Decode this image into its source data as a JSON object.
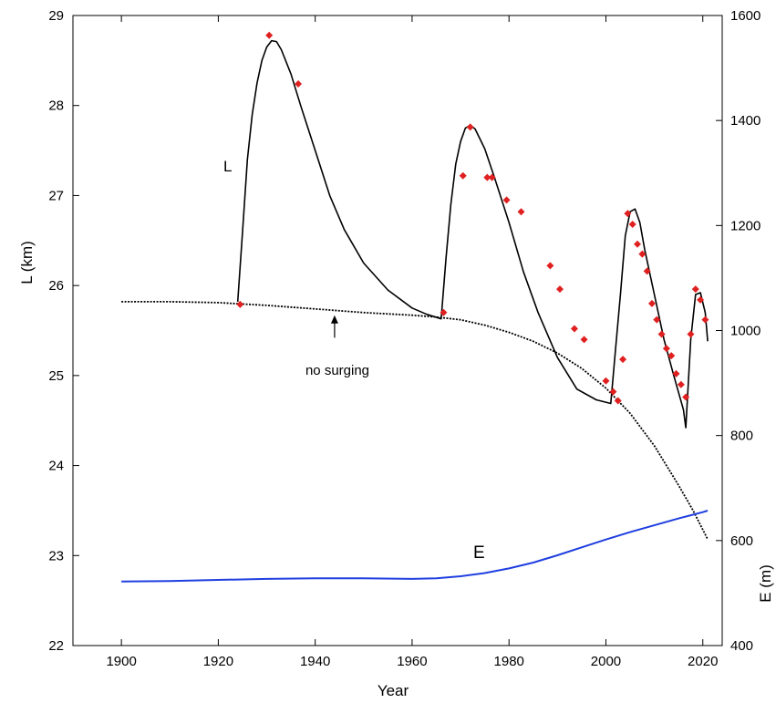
{
  "chart_data": {
    "type": "line",
    "xlabel": "Year",
    "ylabel_left": "L (km)",
    "ylabel_right": "E (m)",
    "xlim": [
      1890,
      2024
    ],
    "ylim_left": [
      22,
      29
    ],
    "ylim_right": [
      400,
      1600
    ],
    "x_ticks": [
      "1900",
      "1920",
      "1940",
      "1960",
      "1980",
      "2000",
      "2020"
    ],
    "y_left_ticks": [
      "22",
      "23",
      "24",
      "25",
      "26",
      "27",
      "28",
      "29"
    ],
    "y_right_ticks": [
      "400",
      "600",
      "800",
      "1000",
      "1200",
      "1400",
      "1600"
    ],
    "grid": false,
    "colors": {
      "L": "#000000",
      "no_surging": "#000000",
      "E": "#1f3fe0",
      "observations": "#e02020"
    },
    "series": [
      {
        "name": "L",
        "axis": "left",
        "style": "solid",
        "x": [
          1924,
          1925,
          1926,
          1927,
          1928,
          1929,
          1930,
          1931,
          1932,
          1933,
          1935,
          1937,
          1940,
          1943,
          1946,
          1950,
          1955,
          1960,
          1963,
          1966,
          1967,
          1968,
          1969,
          1970,
          1971,
          1972,
          1973,
          1975,
          1977,
          1980,
          1983,
          1986,
          1990,
          1994,
          1998,
          2001,
          2002,
          2003,
          2004,
          2005,
          2006,
          2007,
          2008,
          2010,
          2012,
          2014,
          2016,
          2016.5,
          2017.5,
          2018.5,
          2019.5,
          2020.5,
          2021
        ],
        "y": [
          25.82,
          26.6,
          27.4,
          27.9,
          28.25,
          28.5,
          28.65,
          28.72,
          28.71,
          28.62,
          28.35,
          28.0,
          27.5,
          27.0,
          26.62,
          26.25,
          25.95,
          25.75,
          25.68,
          25.63,
          26.3,
          26.9,
          27.35,
          27.6,
          27.75,
          27.78,
          27.74,
          27.52,
          27.2,
          26.7,
          26.15,
          25.7,
          25.2,
          24.85,
          24.73,
          24.69,
          25.3,
          25.9,
          26.55,
          26.82,
          26.85,
          26.7,
          26.4,
          25.9,
          25.4,
          25.0,
          24.62,
          24.42,
          25.4,
          25.9,
          25.92,
          25.7,
          25.38
        ]
      },
      {
        "name": "no surging",
        "axis": "left",
        "style": "dotted",
        "x": [
          1900,
          1910,
          1920,
          1930,
          1940,
          1950,
          1960,
          1965,
          1970,
          1975,
          1980,
          1985,
          1990,
          1995,
          2000,
          2005,
          2010,
          2015,
          2018,
          2021
        ],
        "y": [
          25.82,
          25.82,
          25.81,
          25.78,
          25.74,
          25.7,
          25.67,
          25.65,
          25.62,
          25.56,
          25.48,
          25.38,
          25.25,
          25.08,
          24.86,
          24.58,
          24.22,
          23.78,
          23.5,
          23.18
        ]
      },
      {
        "name": "E",
        "axis": "right",
        "style": "solid",
        "x": [
          1900,
          1910,
          1920,
          1930,
          1940,
          1950,
          1960,
          1965,
          1970,
          1975,
          1980,
          1985,
          1990,
          1995,
          2000,
          2005,
          2010,
          2015,
          2020,
          2021
        ],
        "y": [
          522,
          523,
          525,
          527,
          528,
          528,
          527,
          528,
          532,
          538,
          547,
          558,
          572,
          587,
          602,
          616,
          629,
          642,
          654,
          657
        ]
      },
      {
        "name": "observations",
        "axis": "left",
        "style": "markers",
        "x": [
          1924.5,
          1930.5,
          1936.5,
          1966.5,
          1970.5,
          1972,
          1975.5,
          1976.5,
          1979.5,
          1982.5,
          1988.5,
          1990.5,
          1993.5,
          1995.5,
          2000,
          2001.5,
          2002.5,
          2003.5,
          2004.5,
          2005.5,
          2006.5,
          2007.5,
          2008.5,
          2009.5,
          2010.5,
          2011.5,
          2012.5,
          2013.5,
          2014.5,
          2015.5,
          2016.5,
          2017.5,
          2018.5,
          2019.5,
          2020.5
        ],
        "y": [
          25.79,
          28.78,
          28.24,
          25.7,
          27.22,
          27.76,
          27.2,
          27.2,
          26.95,
          26.82,
          26.22,
          25.96,
          25.52,
          25.4,
          24.94,
          24.82,
          24.72,
          25.18,
          26.8,
          26.68,
          26.46,
          26.35,
          26.16,
          25.8,
          25.62,
          25.46,
          25.3,
          25.22,
          25.02,
          24.9,
          24.76,
          25.46,
          25.96,
          25.84,
          25.62
        ]
      }
    ],
    "annotations": {
      "L_label": "L",
      "E_label": "E",
      "no_surging_label": "no surging"
    }
  }
}
